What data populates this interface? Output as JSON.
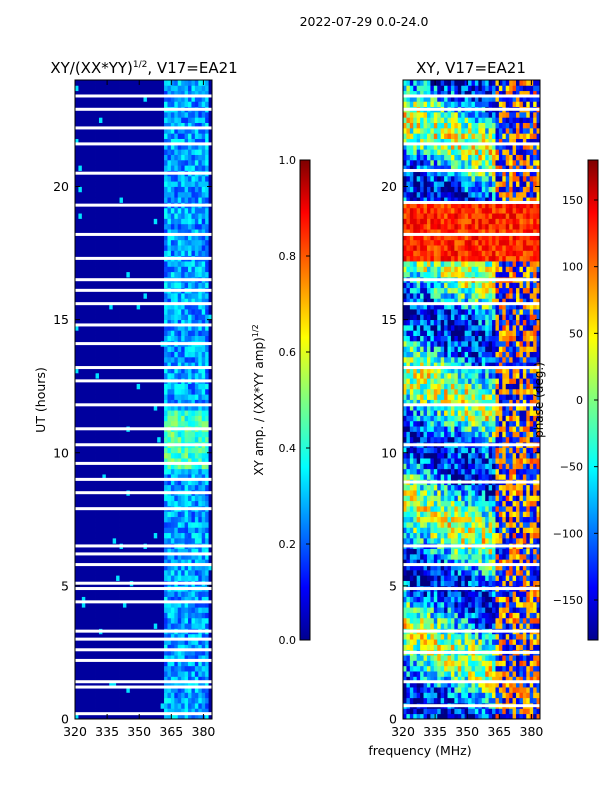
{
  "figure": {
    "suptitle": "2022-07-29 0.0-24.0",
    "shared_xlabel": "frequency (MHz)",
    "colors": {
      "amp_low": "#00008f",
      "flag_white": "#ffffff",
      "axes": "#000000"
    }
  },
  "chart_data": [
    {
      "type": "heatmap",
      "title_prefix": "XY/(XX*YY)",
      "title_exp": "1/2",
      "title_suffix": ", V17=EA21",
      "xlabel": "",
      "ylabel": "UT (hours)",
      "xlim": [
        320,
        384
      ],
      "ylim": [
        0,
        24
      ],
      "xticks": [
        "320",
        "335",
        "350",
        "365",
        "380"
      ],
      "xtick_values": [
        320,
        335,
        350,
        365,
        380
      ],
      "yticks": [
        "0",
        "5",
        "10",
        "15",
        "20"
      ],
      "ytick_values": [
        0,
        5,
        10,
        15,
        20
      ],
      "colorbar": {
        "label_main": "XY amp. / (XX*YY amp)",
        "label_exp": "1/2",
        "range": [
          0.0,
          1.0
        ],
        "ticks": [
          "0.0",
          "0.2",
          "0.4",
          "0.6",
          "0.8",
          "1.0"
        ],
        "tick_values": [
          0.0,
          0.2,
          0.4,
          0.6,
          0.8,
          1.0
        ]
      },
      "background_value": 0.03,
      "high_band_MHz": [
        362,
        382
      ],
      "high_band_level": 0.28,
      "bright_band_hours": [
        9.5,
        11.5
      ],
      "bright_band_level": 0.42,
      "white_gap_hours": [
        0.2,
        1.2,
        1.4,
        2.2,
        2.6,
        3.0,
        3.3,
        4.4,
        4.9,
        5.1,
        5.8,
        6.2,
        6.5,
        7.9,
        8.5,
        9.0,
        9.6,
        10.3,
        10.9,
        11.8,
        12.7,
        13.2,
        14.1,
        14.8,
        15.6,
        16.1,
        16.5,
        17.3,
        18.2,
        19.3,
        20.5,
        21.6,
        22.2,
        22.9,
        23.4
      ]
    },
    {
      "type": "heatmap",
      "title": "XY, V17=EA21",
      "xlabel": "frequency (MHz)",
      "ylabel": "",
      "xlim": [
        320,
        384
      ],
      "ylim": [
        0,
        24
      ],
      "xticks": [
        "320",
        "335",
        "350",
        "365",
        "380"
      ],
      "xtick_values": [
        320,
        335,
        350,
        365,
        380
      ],
      "yticks": [
        "0",
        "5",
        "10",
        "15",
        "20"
      ],
      "ytick_values": [
        0,
        5,
        10,
        15,
        20
      ],
      "colorbar": {
        "label": "phase (deg.)",
        "range": [
          -180,
          180
        ],
        "ticks": [
          "−150",
          "−100",
          "−50",
          "0",
          "50",
          "100",
          "150"
        ],
        "tick_values": [
          -150,
          -100,
          -50,
          0,
          50,
          100,
          150
        ]
      },
      "warm_band_hours": [
        17.2,
        19.3
      ],
      "warm_band_phase": 120,
      "white_gap_hours": [
        0.5,
        1.4,
        2.5,
        3.3,
        4.9,
        5.8,
        6.5,
        8.9,
        10.3,
        11.8,
        13.2,
        15.6,
        16.5,
        18.2,
        19.4,
        20.6,
        21.6,
        22.9,
        23.4
      ]
    }
  ]
}
